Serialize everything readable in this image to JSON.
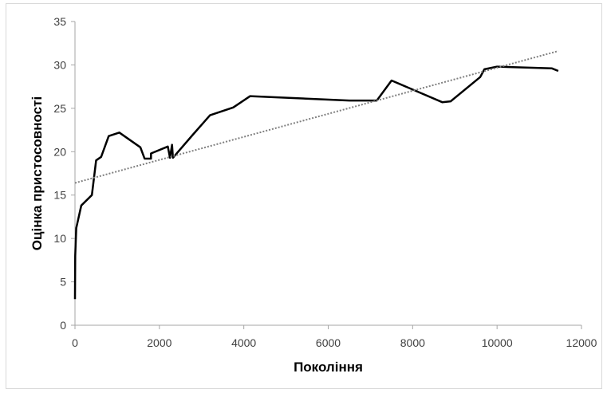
{
  "chart_data": {
    "type": "line",
    "xlabel": "Покоління",
    "ylabel": "Оцінка пристосовності",
    "xlim": [
      0,
      12000
    ],
    "ylim": [
      0,
      35
    ],
    "xticks": [
      "0",
      "2000",
      "4000",
      "6000",
      "8000",
      "10000",
      "12000"
    ],
    "yticks": [
      "0",
      "5",
      "10",
      "15",
      "20",
      "25",
      "30",
      "35"
    ],
    "grid": false,
    "legend": "none",
    "series": [
      {
        "style": "solid",
        "color": "#000000",
        "x": [
          0,
          5,
          30,
          150,
          400,
          500,
          620,
          800,
          1050,
          1550,
          1650,
          1800,
          1800,
          2200,
          2250,
          2300,
          2320,
          2800,
          3200,
          3750,
          4150,
          6500,
          7150,
          7500,
          8700,
          8900,
          9600,
          9700,
          10000,
          11300,
          11450
        ],
        "y": [
          3,
          8,
          11.2,
          13.8,
          15,
          19,
          19.4,
          21.8,
          22.2,
          20.5,
          19.2,
          19.2,
          19.8,
          20.6,
          19.3,
          20.8,
          19.3,
          22.0,
          24.2,
          25.1,
          26.4,
          25.9,
          25.9,
          28.2,
          25.7,
          25.8,
          28.6,
          29.5,
          29.8,
          29.6,
          29.3
        ]
      },
      {
        "style": "dotted",
        "color": "#808080",
        "x": [
          0,
          11450
        ],
        "y": [
          16.4,
          31.6
        ]
      }
    ]
  }
}
